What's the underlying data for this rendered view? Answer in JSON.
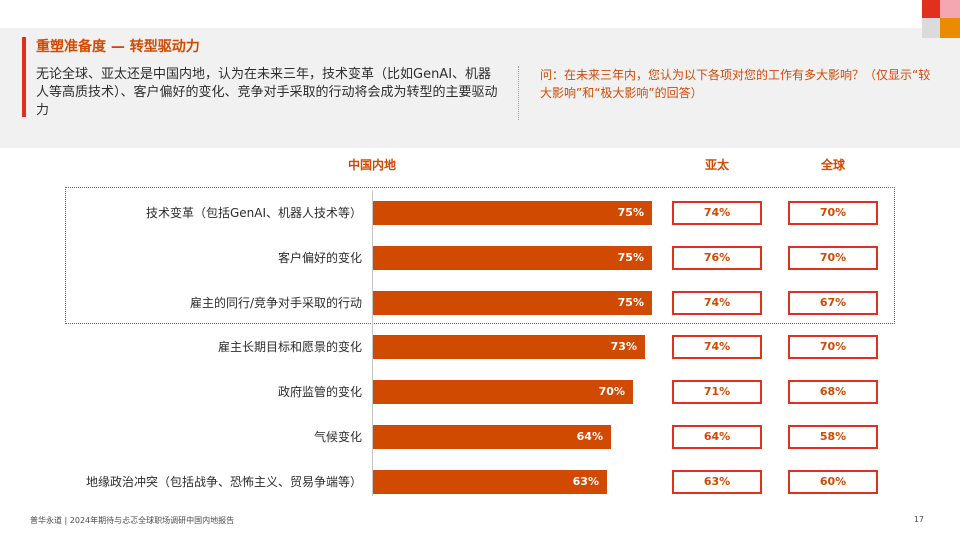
{
  "header": {
    "title": "重塑准备度 — 转型驱动力",
    "summary": "无论全球、亚太还是中国内地，认为在未来三年，技术变革（比如GenAI、机器人等高质技术）、客户偏好的变化、竞争对手采取的行动将会成为转型的主要驱动力",
    "question": "问：在未来三年内，您认为以下各项对您的工作有多大影响？（仅显示“较大影响”和“极大影响”的回答）"
  },
  "columns": {
    "china": "中国内地",
    "apac": "亚太",
    "global": "全球"
  },
  "chart_data": {
    "type": "bar",
    "orientation": "horizontal",
    "title": "",
    "xlim": [
      0,
      100
    ],
    "unit": "%",
    "categories": [
      "技术变革（包括GenAI、机器人技术等）",
      "客户偏好的变化",
      "雇主的同行/竞争对手采取的行动",
      "雇主长期目标和愿景的变化",
      "政府监管的变化",
      "气候变化",
      "地缘政治冲突（包括战争、恐怖主义、贸易争端等）"
    ],
    "series": [
      {
        "name": "中国内地",
        "values": [
          75,
          75,
          75,
          73,
          70,
          64,
          63
        ]
      },
      {
        "name": "亚太",
        "values": [
          74,
          76,
          74,
          74,
          71,
          64,
          63
        ]
      },
      {
        "name": "全球",
        "values": [
          70,
          70,
          67,
          70,
          68,
          58,
          60
        ]
      }
    ],
    "highlighted_rows": 3
  },
  "colors": {
    "bar": "#d04a02",
    "box_border": "#e0301e",
    "accent_text": "#d04a02"
  },
  "footer": {
    "source": "普华永道 | 2024年期待与忐忑全球职场调研中国内地报告",
    "page": "17"
  }
}
